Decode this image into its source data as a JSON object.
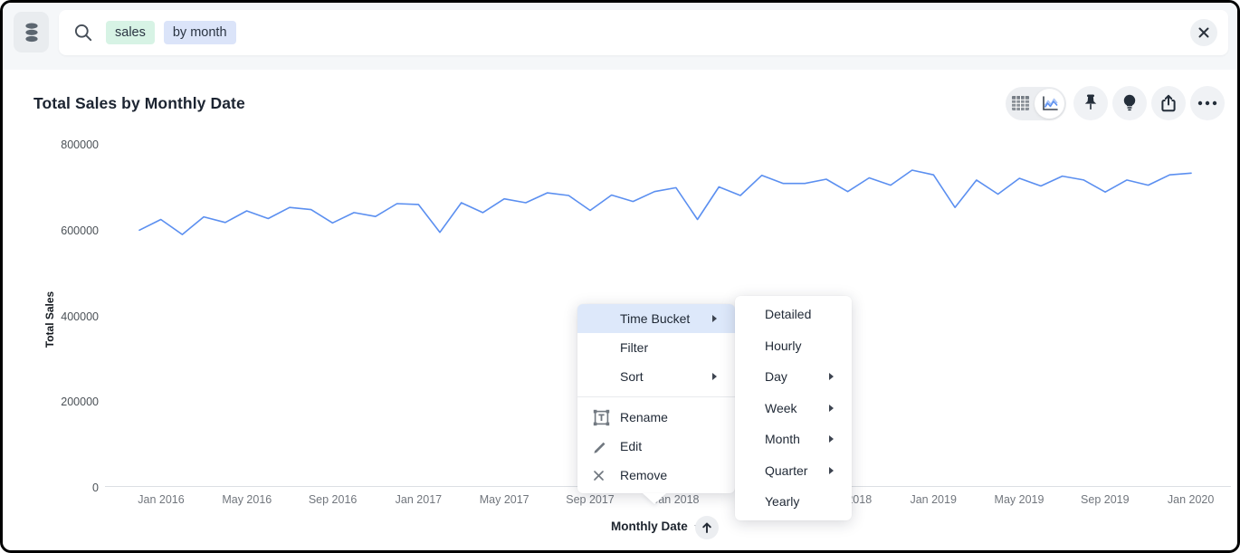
{
  "search_bar": {
    "tokens": [
      {
        "text": "sales",
        "bg": "#d7f3e5"
      },
      {
        "text": "by month",
        "bg": "#dbe4f9"
      }
    ],
    "input_value": "",
    "database_icon": "database-icon",
    "search_icon": "search-icon",
    "close_icon": "close-icon"
  },
  "answer": {
    "title": "Total Sales by Monthly Date",
    "toolbar_icons": [
      "table-view-icon",
      "chart-view-icon",
      "pin-icon",
      "lightbulb-icon",
      "share-icon",
      "ellipsis-icon"
    ]
  },
  "chart_data": {
    "type": "line",
    "title": "Total Sales by Monthly Date",
    "xlabel": "Monthly Date",
    "ylabel": "Total Sales",
    "x": [
      "Dec 2015",
      "Jan 2016",
      "Feb 2016",
      "Mar 2016",
      "Apr 2016",
      "May 2016",
      "Jun 2016",
      "Jul 2016",
      "Aug 2016",
      "Sep 2016",
      "Oct 2016",
      "Nov 2016",
      "Dec 2016",
      "Jan 2017",
      "Feb 2017",
      "Mar 2017",
      "Apr 2017",
      "May 2017",
      "Jun 2017",
      "Jul 2017",
      "Aug 2017",
      "Sep 2017",
      "Oct 2017",
      "Nov 2017",
      "Dec 2017",
      "Jan 2018",
      "Feb 2018",
      "Mar 2018",
      "Apr 2018",
      "May 2018",
      "Jun 2018",
      "Jul 2018",
      "Aug 2018",
      "Sep 2018",
      "Oct 2018",
      "Nov 2018",
      "Dec 2018",
      "Jan 2019",
      "Feb 2019",
      "Mar 2019",
      "Apr 2019",
      "May 2019",
      "Jun 2019",
      "Jul 2019",
      "Aug 2019",
      "Sep 2019",
      "Oct 2019",
      "Nov 2019",
      "Dec 2019",
      "Jan 2020"
    ],
    "values": [
      603000,
      628000,
      593000,
      634000,
      621000,
      648000,
      630000,
      656000,
      651000,
      620000,
      644000,
      635000,
      665000,
      663000,
      598000,
      667000,
      644000,
      676000,
      667000,
      690000,
      684000,
      649000,
      685000,
      670000,
      693000,
      702000,
      628000,
      704000,
      684000,
      731000,
      712000,
      712000,
      722000,
      693000,
      725000,
      708000,
      743000,
      732000,
      656000,
      720000,
      687000,
      724000,
      706000,
      729000,
      720000,
      692000,
      720000,
      708000,
      732000,
      736000
    ],
    "ylim": [
      0,
      800000
    ],
    "yticks": [
      0,
      200000,
      400000,
      600000,
      800000
    ],
    "xticks": [
      "Jan 2016",
      "May 2016",
      "Sep 2016",
      "Jan 2017",
      "May 2017",
      "Sep 2017",
      "Jan 2018",
      "May 2018",
      "Sep 2018",
      "Jan 2019",
      "May 2019",
      "Sep 2019",
      "Jan 2020"
    ],
    "grid": false,
    "legend": false,
    "line_color": "#5b8ff0"
  },
  "context_menu": {
    "items": [
      {
        "label": "Time Bucket",
        "submenu": true,
        "highlighted": true
      },
      {
        "label": "Filter"
      },
      {
        "label": "Sort",
        "submenu": true
      },
      {
        "divider": true
      },
      {
        "label": "Rename",
        "icon": "rename-icon"
      },
      {
        "label": "Edit",
        "icon": "edit-icon"
      },
      {
        "label": "Remove",
        "icon": "remove-icon"
      }
    ]
  },
  "time_bucket_submenu": {
    "items": [
      {
        "label": "Detailed"
      },
      {
        "label": "Hourly"
      },
      {
        "label": "Day",
        "submenu": true
      },
      {
        "label": "Week",
        "submenu": true
      },
      {
        "label": "Month",
        "submenu": true
      },
      {
        "label": "Quarter",
        "submenu": true
      },
      {
        "label": "Yearly"
      }
    ]
  },
  "x_axis_control": {
    "label": "Monthly Date",
    "sort_icon": "arrow-up-icon",
    "caret_icon": "chevron-down-icon"
  },
  "colors": {
    "line": "#5b8ff0",
    "menu_highlight": "#dde8fa",
    "topbar_bg": "#f5f7f9",
    "token_sales_bg": "#d7f3e5",
    "token_by_month_bg": "#dbe4f9"
  }
}
